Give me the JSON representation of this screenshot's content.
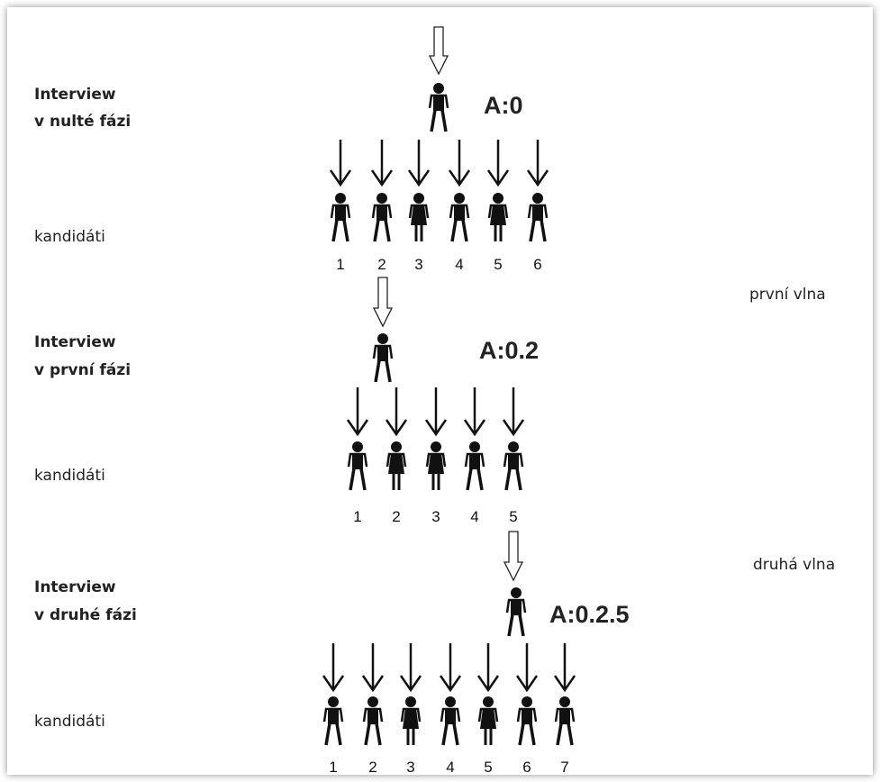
{
  "stages": [
    {
      "title": [
        "Interview",
        "v nulté fázi"
      ],
      "code": "A:0",
      "candidates_label": "kandidáti",
      "candidates": [
        1,
        2,
        3,
        4,
        5,
        6
      ]
    },
    {
      "title": [
        "Interview",
        "v první fázi"
      ],
      "code": "A:0.2",
      "candidates_label": "kandidáti",
      "candidates": [
        1,
        2,
        3,
        4,
        5
      ]
    },
    {
      "title": [
        "Interview",
        "v druhé fázi"
      ],
      "code": "A:0.2.5",
      "candidates_label": "kandidáti",
      "candidates": [
        1,
        2,
        3,
        4,
        5,
        6,
        7
      ]
    }
  ],
  "waves": [
    "první vlna",
    "druhá vlna"
  ]
}
